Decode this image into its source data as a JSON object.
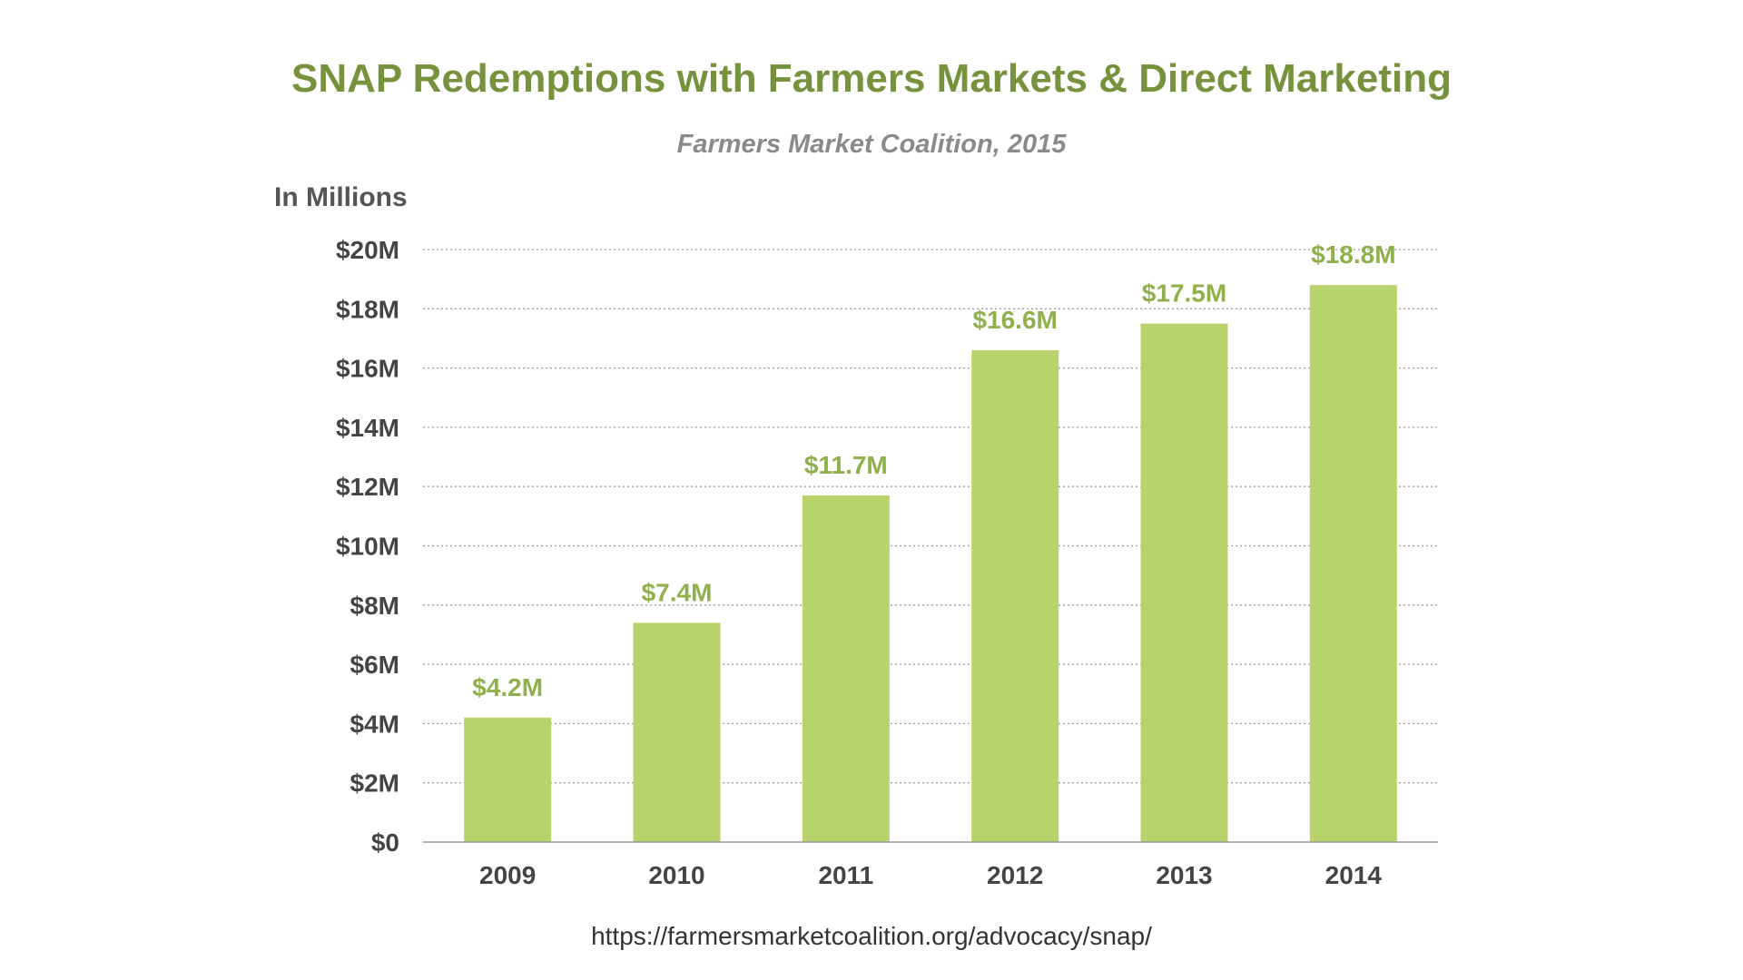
{
  "colors": {
    "title": "#76923c",
    "bar": "#b8d36b",
    "data_label": "#8fb04b",
    "gridline": "#9a9a9a",
    "axis": "#9a9a9a"
  },
  "source_url": "https://farmersmarketcoalition.org/advocacy/snap/",
  "chart_data": {
    "type": "bar",
    "title": "SNAP Redemptions with Farmers Markets & Direct Marketing",
    "subtitle": "Farmers Market Coalition, 2015",
    "ylabel": "In Millions",
    "xlabel": "",
    "categories": [
      "2009",
      "2010",
      "2011",
      "2012",
      "2013",
      "2014"
    ],
    "values": [
      4.2,
      7.4,
      11.7,
      16.6,
      17.5,
      18.8
    ],
    "data_labels": [
      "$4.2M",
      "$7.4M",
      "$11.7M",
      "$16.6M",
      "$17.5M",
      "$18.8M"
    ],
    "ylim": [
      0,
      20
    ],
    "yticks": [
      0,
      2,
      4,
      6,
      8,
      10,
      12,
      14,
      16,
      18,
      20
    ],
    "ytick_labels": [
      "$0",
      "$2M",
      "$4M",
      "$6M",
      "$8M",
      "$10M",
      "$12M",
      "$14M",
      "$16M",
      "$18M",
      "$20M"
    ],
    "grid": true,
    "grid_style": "dotted",
    "legend": "none"
  }
}
